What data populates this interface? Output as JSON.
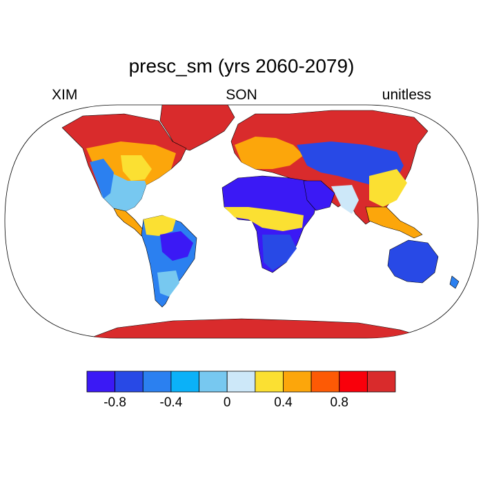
{
  "title": "presc_sm (yrs 2060-2079)",
  "subtitles": {
    "left": "XIM",
    "center": "SON",
    "right": "unitless"
  },
  "colorbar": {
    "colors": [
      "#3b19f5",
      "#2849e6",
      "#2b80f0",
      "#0bb1f8",
      "#77c8f0",
      "#cde8f9",
      "#fbe032",
      "#fca60b",
      "#fd5a05",
      "#f9000b",
      "#d92b2c"
    ],
    "ticks": [
      {
        "value": -0.8,
        "label": "-0.8"
      },
      {
        "value": -0.4,
        "label": "-0.4"
      },
      {
        "value": 0,
        "label": "0"
      },
      {
        "value": 0.4,
        "label": "0.4"
      },
      {
        "value": 0.8,
        "label": "0.8"
      }
    ]
  },
  "colors": {
    "ocean": "#ffffff",
    "coast": "#000000",
    "border": "#000000"
  }
}
